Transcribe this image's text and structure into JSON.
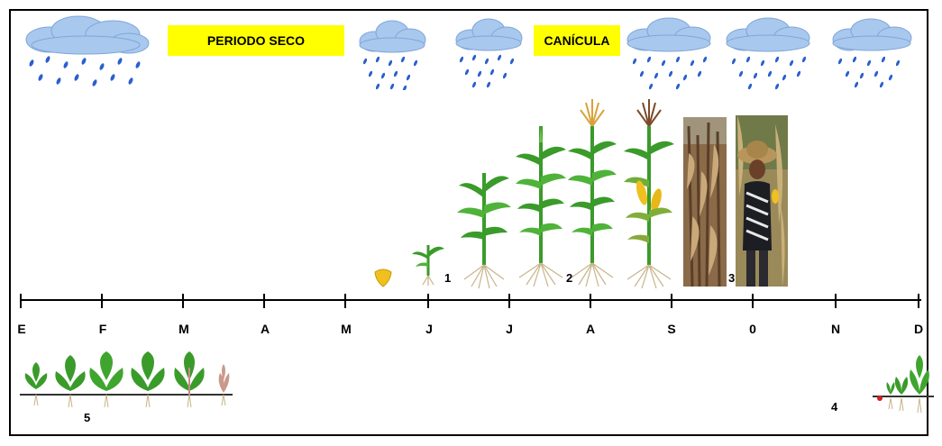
{
  "banners": {
    "dry": "PERIODO SECO",
    "heat": "CANÍCULA"
  },
  "months": [
    "E",
    "F",
    "M",
    "A",
    "M",
    "J",
    "J",
    "A",
    "S",
    "0",
    "N",
    "D"
  ],
  "stages": [
    "1",
    "2",
    "3",
    "4",
    "5"
  ],
  "colors": {
    "banner": "#ffff00",
    "rain": "#2a5fd0",
    "cloud": "#a9c8ee",
    "leaf": "#3a9b2a",
    "root": "#c7b48a"
  }
}
